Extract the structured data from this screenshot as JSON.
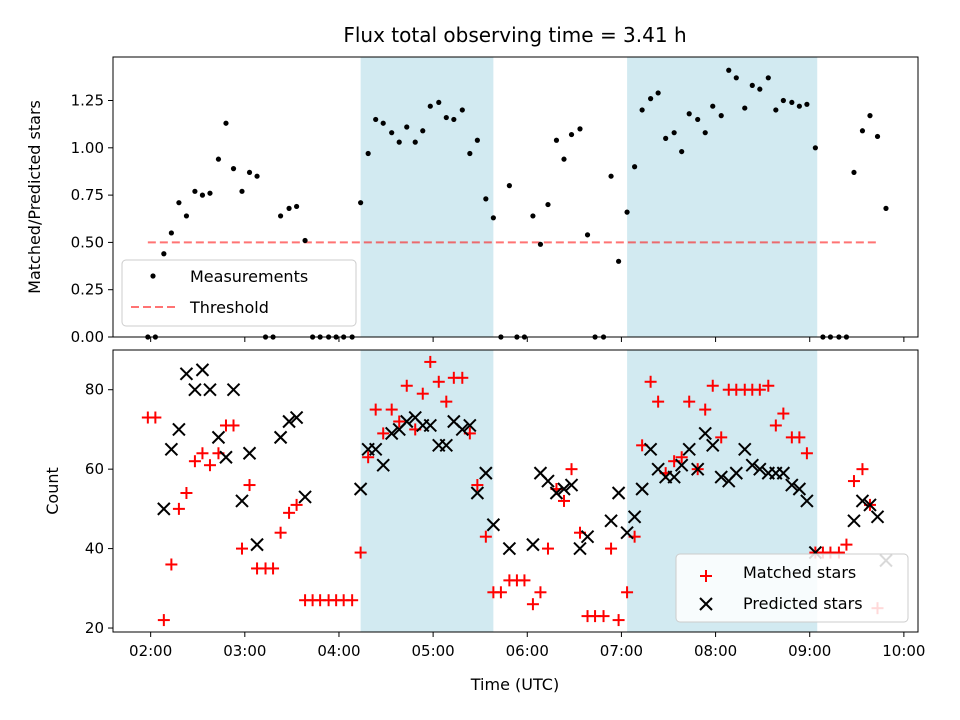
{
  "title": "Flux total observing time = 3.41 h",
  "colors": {
    "shade": "#add8e6",
    "threshold": "#ff0000",
    "measurement": "#000000",
    "matched": "#ff0000",
    "predicted": "#000000"
  },
  "chart_data": [
    {
      "type": "scatter",
      "ylabel": "Matched/Predicted stars",
      "xlim": [
        1.6,
        10.15
      ],
      "ylim": [
        0,
        1.48
      ],
      "yticks": [
        "0.00",
        "0.25",
        "0.50",
        "0.75",
        "1.00",
        "1.25"
      ],
      "shaded_ranges": [
        [
          4.23,
          5.64
        ],
        [
          7.06,
          9.08
        ]
      ],
      "legend": {
        "placement": "lower-left",
        "entries": [
          "Measurements",
          "Threshold"
        ]
      },
      "threshold": {
        "name": "Threshold",
        "y": 0.5,
        "x_range": [
          1.97,
          9.73
        ]
      },
      "series": [
        {
          "name": "Measurements",
          "points": [
            [
              1.97,
              0
            ],
            [
              2.05,
              0
            ],
            [
              2.14,
              0.44
            ],
            [
              2.22,
              0.55
            ],
            [
              2.3,
              0.71
            ],
            [
              2.38,
              0.64
            ],
            [
              2.47,
              0.77
            ],
            [
              2.55,
              0.75
            ],
            [
              2.63,
              0.76
            ],
            [
              2.72,
              0.94
            ],
            [
              2.8,
              1.13
            ],
            [
              2.88,
              0.89
            ],
            [
              2.97,
              0.77
            ],
            [
              3.05,
              0.87
            ],
            [
              3.13,
              0.85
            ],
            [
              3.22,
              0
            ],
            [
              3.3,
              0
            ],
            [
              3.38,
              0.64
            ],
            [
              3.47,
              0.68
            ],
            [
              3.55,
              0.69
            ],
            [
              3.64,
              0.51
            ],
            [
              3.72,
              0
            ],
            [
              3.8,
              0
            ],
            [
              3.89,
              0
            ],
            [
              3.97,
              0
            ],
            [
              4.05,
              0
            ],
            [
              4.14,
              0
            ],
            [
              4.23,
              0.71
            ],
            [
              4.31,
              0.97
            ],
            [
              4.39,
              1.15
            ],
            [
              4.47,
              1.13
            ],
            [
              4.56,
              1.08
            ],
            [
              4.64,
              1.03
            ],
            [
              4.72,
              1.11
            ],
            [
              4.81,
              1.03
            ],
            [
              4.89,
              1.09
            ],
            [
              4.97,
              1.22
            ],
            [
              5.06,
              1.24
            ],
            [
              5.14,
              1.16
            ],
            [
              5.22,
              1.15
            ],
            [
              5.31,
              1.2
            ],
            [
              5.39,
              0.97
            ],
            [
              5.47,
              1.04
            ],
            [
              5.56,
              0.73
            ],
            [
              5.64,
              0.63
            ],
            [
              5.72,
              0
            ],
            [
              5.81,
              0.8
            ],
            [
              5.89,
              0
            ],
            [
              5.97,
              0
            ],
            [
              6.06,
              0.64
            ],
            [
              6.14,
              0.49
            ],
            [
              6.22,
              0.7
            ],
            [
              6.31,
              1.04
            ],
            [
              6.39,
              0.94
            ],
            [
              6.47,
              1.07
            ],
            [
              6.56,
              1.1
            ],
            [
              6.64,
              0.54
            ],
            [
              6.72,
              0
            ],
            [
              6.81,
              0
            ],
            [
              6.89,
              0.85
            ],
            [
              6.97,
              0.4
            ],
            [
              7.06,
              0.66
            ],
            [
              7.14,
              0.9
            ],
            [
              7.22,
              1.2
            ],
            [
              7.31,
              1.26
            ],
            [
              7.39,
              1.29
            ],
            [
              7.47,
              1.05
            ],
            [
              7.56,
              1.08
            ],
            [
              7.64,
              0.98
            ],
            [
              7.72,
              1.18
            ],
            [
              7.81,
              1.15
            ],
            [
              7.89,
              1.08
            ],
            [
              7.97,
              1.22
            ],
            [
              8.06,
              1.17
            ],
            [
              8.14,
              1.41
            ],
            [
              8.22,
              1.37
            ],
            [
              8.31,
              1.21
            ],
            [
              8.39,
              1.33
            ],
            [
              8.47,
              1.31
            ],
            [
              8.56,
              1.37
            ],
            [
              8.64,
              1.2
            ],
            [
              8.72,
              1.25
            ],
            [
              8.81,
              1.24
            ],
            [
              8.89,
              1.22
            ],
            [
              8.97,
              1.23
            ],
            [
              9.06,
              1.0
            ],
            [
              9.14,
              0
            ],
            [
              9.22,
              0
            ],
            [
              9.31,
              0
            ],
            [
              9.39,
              0
            ],
            [
              9.47,
              0.87
            ],
            [
              9.56,
              1.09
            ],
            [
              9.64,
              1.17
            ],
            [
              9.72,
              1.06
            ],
            [
              9.81,
              0.68
            ]
          ]
        }
      ]
    },
    {
      "type": "scatter",
      "xlabel": "Time (UTC)",
      "ylabel": "Count",
      "xlim": [
        1.6,
        10.15
      ],
      "ylim": [
        19,
        90
      ],
      "yticks": [
        "20",
        "40",
        "60",
        "80"
      ],
      "xticks": [
        "02:00",
        "03:00",
        "04:00",
        "05:00",
        "06:00",
        "07:00",
        "08:00",
        "09:00",
        "10:00"
      ],
      "shaded_ranges": [
        [
          4.23,
          5.64
        ],
        [
          7.06,
          9.08
        ]
      ],
      "legend": {
        "placement": "lower-right",
        "entries": [
          "Matched stars",
          "Predicted stars"
        ]
      },
      "series": [
        {
          "name": "Matched stars",
          "marker": "+",
          "points": [
            [
              1.97,
              73
            ],
            [
              2.05,
              73
            ],
            [
              2.14,
              22
            ],
            [
              2.22,
              36
            ],
            [
              2.3,
              50
            ],
            [
              2.38,
              54
            ],
            [
              2.47,
              62
            ],
            [
              2.55,
              64
            ],
            [
              2.63,
              61
            ],
            [
              2.72,
              64
            ],
            [
              2.8,
              71
            ],
            [
              2.88,
              71
            ],
            [
              2.97,
              40
            ],
            [
              3.05,
              56
            ],
            [
              3.13,
              35
            ],
            [
              3.22,
              35
            ],
            [
              3.3,
              35
            ],
            [
              3.38,
              44
            ],
            [
              3.47,
              49
            ],
            [
              3.55,
              51
            ],
            [
              3.64,
              27
            ],
            [
              3.72,
              27
            ],
            [
              3.8,
              27
            ],
            [
              3.89,
              27
            ],
            [
              3.97,
              27
            ],
            [
              4.05,
              27
            ],
            [
              4.14,
              27
            ],
            [
              4.23,
              39
            ],
            [
              4.31,
              63
            ],
            [
              4.39,
              75
            ],
            [
              4.47,
              69
            ],
            [
              4.56,
              75
            ],
            [
              4.64,
              72
            ],
            [
              4.72,
              81
            ],
            [
              4.81,
              70
            ],
            [
              4.89,
              79
            ],
            [
              4.97,
              87
            ],
            [
              5.06,
              82
            ],
            [
              5.14,
              77
            ],
            [
              5.22,
              83
            ],
            [
              5.31,
              83
            ],
            [
              5.39,
              69
            ],
            [
              5.47,
              56
            ],
            [
              5.56,
              43
            ],
            [
              5.64,
              29
            ],
            [
              5.72,
              29
            ],
            [
              5.81,
              32
            ],
            [
              5.89,
              32
            ],
            [
              5.97,
              32
            ],
            [
              6.06,
              26
            ],
            [
              6.14,
              29
            ],
            [
              6.22,
              40
            ],
            [
              6.31,
              55
            ],
            [
              6.39,
              52
            ],
            [
              6.47,
              60
            ],
            [
              6.56,
              44
            ],
            [
              6.64,
              23
            ],
            [
              6.72,
              23
            ],
            [
              6.81,
              23
            ],
            [
              6.89,
              40
            ],
            [
              6.97,
              22
            ],
            [
              7.06,
              29
            ],
            [
              7.14,
              43
            ],
            [
              7.22,
              66
            ],
            [
              7.31,
              82
            ],
            [
              7.39,
              77
            ],
            [
              7.47,
              59
            ],
            [
              7.56,
              62
            ],
            [
              7.64,
              63
            ],
            [
              7.72,
              77
            ],
            [
              7.81,
              60
            ],
            [
              7.89,
              75
            ],
            [
              7.97,
              81
            ],
            [
              8.06,
              68
            ],
            [
              8.14,
              80
            ],
            [
              8.22,
              80
            ],
            [
              8.31,
              80
            ],
            [
              8.39,
              80
            ],
            [
              8.47,
              80
            ],
            [
              8.56,
              81
            ],
            [
              8.64,
              71
            ],
            [
              8.72,
              74
            ],
            [
              8.81,
              68
            ],
            [
              8.89,
              68
            ],
            [
              8.97,
              64
            ],
            [
              9.06,
              39
            ],
            [
              9.14,
              39
            ],
            [
              9.22,
              39
            ],
            [
              9.31,
              39
            ],
            [
              9.39,
              41
            ],
            [
              9.47,
              57
            ],
            [
              9.56,
              60
            ],
            [
              9.64,
              51
            ],
            [
              9.72,
              25
            ]
          ]
        },
        {
          "name": "Predicted stars",
          "marker": "x",
          "points": [
            [
              2.14,
              50
            ],
            [
              2.22,
              65
            ],
            [
              2.3,
              70
            ],
            [
              2.38,
              84
            ],
            [
              2.47,
              80
            ],
            [
              2.55,
              85
            ],
            [
              2.63,
              80
            ],
            [
              2.72,
              68
            ],
            [
              2.8,
              63
            ],
            [
              2.88,
              80
            ],
            [
              2.97,
              52
            ],
            [
              3.05,
              64
            ],
            [
              3.13,
              41
            ],
            [
              3.38,
              68
            ],
            [
              3.47,
              72
            ],
            [
              3.55,
              73
            ],
            [
              3.64,
              53
            ],
            [
              4.23,
              55
            ],
            [
              4.31,
              65
            ],
            [
              4.39,
              65
            ],
            [
              4.47,
              61
            ],
            [
              4.56,
              69
            ],
            [
              4.64,
              70
            ],
            [
              4.72,
              72
            ],
            [
              4.81,
              73
            ],
            [
              4.89,
              71
            ],
            [
              4.97,
              71
            ],
            [
              5.06,
              66
            ],
            [
              5.14,
              66
            ],
            [
              5.22,
              72
            ],
            [
              5.31,
              70
            ],
            [
              5.39,
              71
            ],
            [
              5.47,
              54
            ],
            [
              5.56,
              59
            ],
            [
              5.64,
              46
            ],
            [
              5.81,
              40
            ],
            [
              6.06,
              41
            ],
            [
              6.14,
              59
            ],
            [
              6.22,
              57
            ],
            [
              6.31,
              54
            ],
            [
              6.39,
              55
            ],
            [
              6.47,
              56
            ],
            [
              6.56,
              40
            ],
            [
              6.64,
              43
            ],
            [
              6.89,
              47
            ],
            [
              6.97,
              54
            ],
            [
              7.06,
              44
            ],
            [
              7.14,
              48
            ],
            [
              7.22,
              55
            ],
            [
              7.31,
              65
            ],
            [
              7.39,
              60
            ],
            [
              7.47,
              58
            ],
            [
              7.56,
              58
            ],
            [
              7.64,
              61
            ],
            [
              7.72,
              65
            ],
            [
              7.81,
              60
            ],
            [
              7.89,
              69
            ],
            [
              7.97,
              66
            ],
            [
              8.06,
              58
            ],
            [
              8.14,
              57
            ],
            [
              8.22,
              59
            ],
            [
              8.31,
              65
            ],
            [
              8.39,
              61
            ],
            [
              8.47,
              60
            ],
            [
              8.56,
              59
            ],
            [
              8.64,
              59
            ],
            [
              8.72,
              59
            ],
            [
              8.81,
              56
            ],
            [
              8.89,
              55
            ],
            [
              8.97,
              52
            ],
            [
              9.06,
              39
            ],
            [
              9.47,
              47
            ],
            [
              9.56,
              52
            ],
            [
              9.64,
              51
            ],
            [
              9.72,
              48
            ],
            [
              9.81,
              37
            ]
          ]
        }
      ]
    }
  ]
}
